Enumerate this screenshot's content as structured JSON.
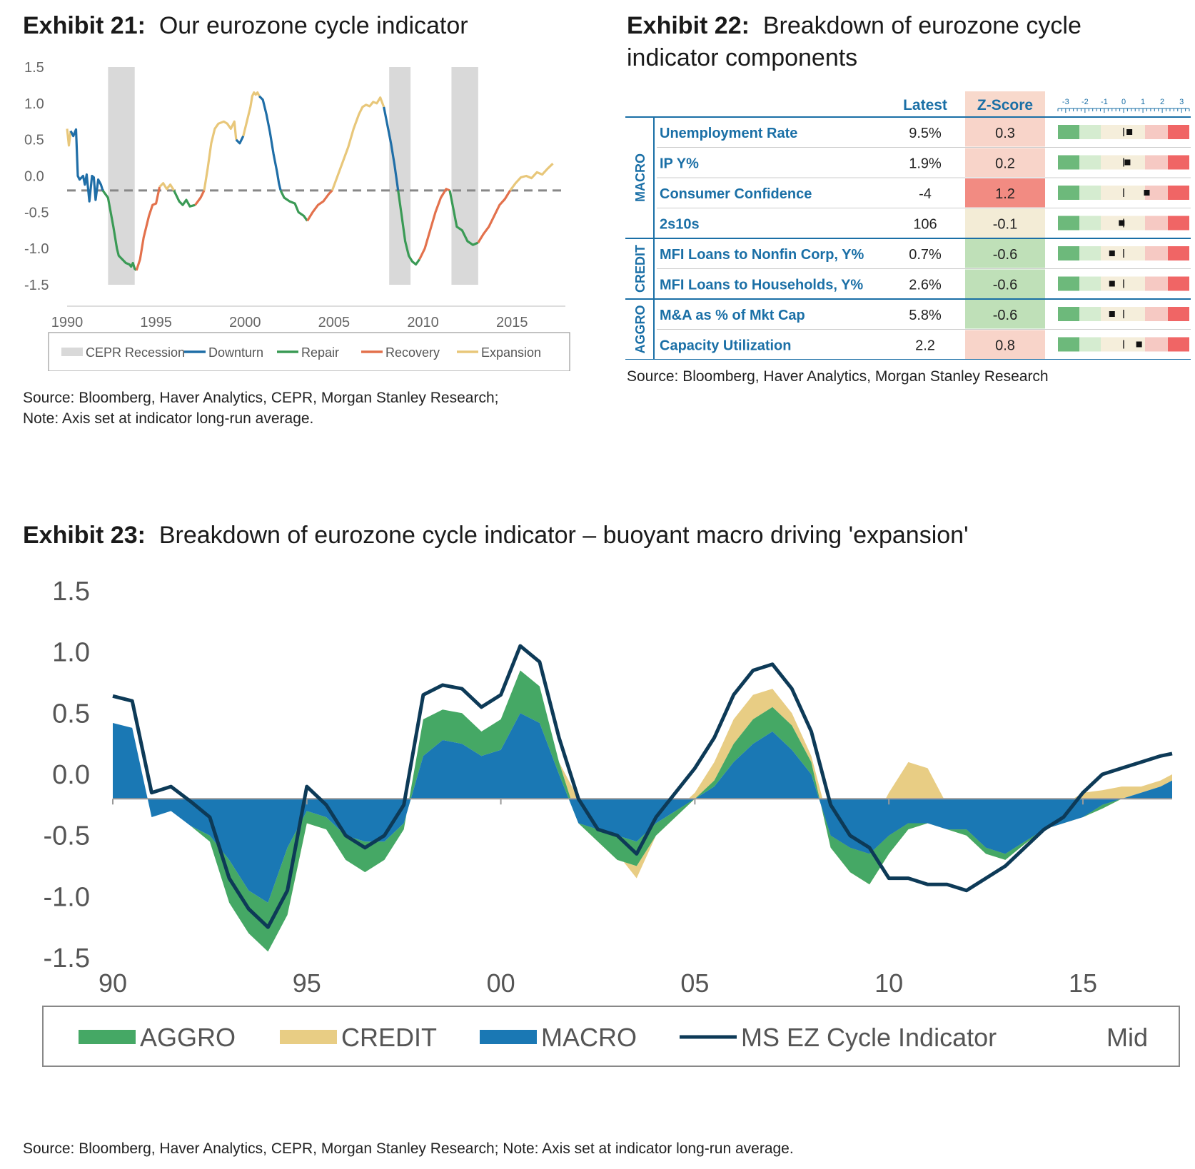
{
  "exhibit21": {
    "label": "Exhibit 21:",
    "title": "Our eurozone cycle indicator",
    "source_line1": "Source: Bloomberg, Haver Analytics, CEPR, Morgan Stanley Research;",
    "source_line2": "Note: Axis set at indicator long-run average."
  },
  "exhibit22": {
    "label": "Exhibit 22:",
    "title_line1": "Breakdown of eurozone cycle",
    "title_line2": "indicator components",
    "source": "Source: Bloomberg, Haver Analytics, Morgan Stanley Research",
    "col_latest": "Latest",
    "col_zscore": "Z-Score",
    "scale_ticks": [
      "-3",
      "-2",
      "-1",
      "0",
      "1",
      "2",
      "3"
    ],
    "groups": [
      {
        "name": "MACRO",
        "rows": 4
      },
      {
        "name": "CREDIT",
        "rows": 2
      },
      {
        "name": "AGGRO",
        "rows": 2
      }
    ],
    "rows": [
      {
        "name": "Unemployment Rate",
        "latest": "9.5%",
        "z": "0.3",
        "zval": 0.3
      },
      {
        "name": "IP Y%",
        "latest": "1.9%",
        "z": "0.2",
        "zval": 0.2
      },
      {
        "name": "Consumer Confidence",
        "latest": "-4",
        "z": "1.2",
        "zval": 1.2
      },
      {
        "name": "2s10s",
        "latest": "106",
        "z": "-0.1",
        "zval": -0.1
      },
      {
        "name": "MFI Loans to Nonfin Corp, Y%",
        "latest": "0.7%",
        "z": "-0.6",
        "zval": -0.6
      },
      {
        "name": "MFI Loans to Households, Y%",
        "latest": "2.6%",
        "z": "-0.6",
        "zval": -0.6
      },
      {
        "name": "M&A as % of Mkt Cap",
        "latest": "5.8%",
        "z": "-0.6",
        "zval": -0.6
      },
      {
        "name": "Capacity Utilization",
        "latest": "2.2",
        "z": "0.8",
        "zval": 0.8
      }
    ]
  },
  "exhibit23": {
    "label": "Exhibit 23:",
    "title": "Breakdown of eurozone cycle indicator – buoyant macro driving 'expansion'",
    "source": "Source: Bloomberg, Haver Analytics, CEPR, Morgan Stanley Research; Note: Axis set at indicator long-run average."
  },
  "chart_data": [
    {
      "id": "exhibit21",
      "type": "line",
      "title": "Our eurozone cycle indicator",
      "x_tick_labels": [
        "1990",
        "1995",
        "2000",
        "2005",
        "2010",
        "2015"
      ],
      "y_tick_labels": [
        "1.5",
        "1.0",
        "0.5",
        "0.0",
        "-0.5",
        "-1.0",
        "-1.5"
      ],
      "xlim": [
        1990,
        2018
      ],
      "ylim": [
        -1.5,
        1.5
      ],
      "reference_line": -0.2,
      "recessions": [
        [
          1992.3,
          1993.8
        ],
        [
          2008.1,
          2009.3
        ],
        [
          2011.6,
          2013.1
        ]
      ],
      "legend": [
        "CEPR Recession",
        "Downturn",
        "Repair",
        "Recovery",
        "Expansion"
      ],
      "phase_colors": {
        "Downturn": "#1f6ea7",
        "Repair": "#3a9a55",
        "Recovery": "#e3714c",
        "Expansion": "#e8c77a",
        "CEPR Recession": "#d9d9d9"
      },
      "series": [
        {
          "phase": "Expansion",
          "x": [
            1990.0,
            1990.1,
            1990.2
          ],
          "y": [
            0.65,
            0.42,
            0.62
          ]
        },
        {
          "phase": "Downturn",
          "x": [
            1990.2,
            1990.35,
            1990.5,
            1990.6,
            1990.7,
            1990.9,
            1991.0,
            1991.1,
            1991.25,
            1991.4,
            1991.5,
            1991.6,
            1991.75,
            1991.9,
            1992.0
          ],
          "y": [
            0.62,
            0.55,
            0.64,
            0.0,
            -0.05,
            0.0,
            -0.12,
            0.02,
            -0.35,
            0.0,
            -0.02,
            -0.33,
            -0.05,
            -0.12,
            -0.2
          ]
        },
        {
          "phase": "Repair",
          "x": [
            1992.0,
            1992.3,
            1992.6,
            1992.8,
            1992.9,
            1993.1,
            1993.3,
            1993.5,
            1993.6,
            1993.7,
            1993.8,
            1993.9
          ],
          "y": [
            -0.2,
            -0.3,
            -0.7,
            -1.0,
            -1.1,
            -1.15,
            -1.2,
            -1.22,
            -1.25,
            -1.2,
            -1.28,
            -1.3
          ]
        },
        {
          "phase": "Recovery",
          "x": [
            1993.9,
            1994.1,
            1994.3,
            1994.6,
            1994.8,
            1995.0,
            1995.2
          ],
          "y": [
            -1.3,
            -1.15,
            -0.85,
            -0.55,
            -0.4,
            -0.38,
            -0.15
          ]
        },
        {
          "phase": "Expansion",
          "x": [
            1995.2,
            1995.4,
            1995.6,
            1995.8,
            1996.0
          ],
          "y": [
            -0.15,
            -0.1,
            -0.18,
            -0.12,
            -0.2
          ]
        },
        {
          "phase": "Repair",
          "x": [
            1996.0,
            1996.3,
            1996.5,
            1996.7,
            1996.9,
            1997.2
          ],
          "y": [
            -0.2,
            -0.35,
            -0.4,
            -0.33,
            -0.42,
            -0.4
          ]
        },
        {
          "phase": "Recovery",
          "x": [
            1997.2,
            1997.5,
            1997.7
          ],
          "y": [
            -0.4,
            -0.3,
            -0.2
          ]
        },
        {
          "phase": "Expansion",
          "x": [
            1997.7,
            1997.9,
            1998.1,
            1998.3,
            1998.5,
            1998.8,
            1999.0,
            1999.2,
            1999.4,
            1999.5
          ],
          "y": [
            -0.2,
            0.1,
            0.45,
            0.65,
            0.72,
            0.75,
            0.72,
            0.65,
            0.75,
            0.5
          ]
        },
        {
          "phase": "Downturn",
          "x": [
            1999.5,
            1999.7,
            1999.9
          ],
          "y": [
            0.5,
            0.45,
            0.55
          ]
        },
        {
          "phase": "Expansion",
          "x": [
            1999.9,
            2000.1,
            2000.3,
            2000.4,
            2000.5,
            2000.6,
            2000.7,
            2000.8
          ],
          "y": [
            0.55,
            0.75,
            0.95,
            1.1,
            1.15,
            1.12,
            1.15,
            1.1
          ]
        },
        {
          "phase": "Downturn",
          "x": [
            2000.8,
            2001.0,
            2001.2,
            2001.4,
            2001.6,
            2001.8,
            2001.9,
            2002.0
          ],
          "y": [
            1.1,
            1.05,
            0.85,
            0.6,
            0.3,
            0.05,
            -0.1,
            -0.2
          ]
        },
        {
          "phase": "Repair",
          "x": [
            2002.0,
            2002.2,
            2002.5,
            2002.8,
            2003.0,
            2003.3,
            2003.5
          ],
          "y": [
            -0.2,
            -0.3,
            -0.35,
            -0.38,
            -0.5,
            -0.55,
            -0.62
          ]
        },
        {
          "phase": "Recovery",
          "x": [
            2003.5,
            2003.8,
            2004.1,
            2004.4,
            2004.7,
            2004.9
          ],
          "y": [
            -0.62,
            -0.5,
            -0.4,
            -0.35,
            -0.25,
            -0.2
          ]
        },
        {
          "phase": "Expansion",
          "x": [
            2004.9,
            2005.2,
            2005.5,
            2005.8,
            2006.1,
            2006.4,
            2006.6,
            2006.8,
            2007.0,
            2007.2,
            2007.4,
            2007.6,
            2007.8
          ],
          "y": [
            -0.2,
            0.0,
            0.2,
            0.4,
            0.65,
            0.85,
            0.95,
            0.98,
            0.96,
            1.02,
            1.0,
            1.08,
            0.95
          ]
        },
        {
          "phase": "Downturn",
          "x": [
            2007.8,
            2008.0,
            2008.2,
            2008.4,
            2008.6
          ],
          "y": [
            0.95,
            0.7,
            0.45,
            0.15,
            -0.2
          ]
        },
        {
          "phase": "Repair",
          "x": [
            2008.6,
            2008.8,
            2009.0,
            2009.2,
            2009.4,
            2009.6,
            2009.8
          ],
          "y": [
            -0.2,
            -0.55,
            -0.9,
            -1.1,
            -1.18,
            -1.22,
            -1.15
          ]
        },
        {
          "phase": "Recovery",
          "x": [
            2009.8,
            2010.1,
            2010.4,
            2010.7,
            2011.0,
            2011.3,
            2011.5
          ],
          "y": [
            -1.15,
            -1.0,
            -0.75,
            -0.5,
            -0.3,
            -0.18,
            -0.2
          ]
        },
        {
          "phase": "Repair",
          "x": [
            2011.5,
            2011.7,
            2011.9,
            2012.2,
            2012.5,
            2012.8,
            2013.1
          ],
          "y": [
            -0.2,
            -0.45,
            -0.7,
            -0.75,
            -0.9,
            -0.95,
            -0.92
          ]
        },
        {
          "phase": "Recovery",
          "x": [
            2013.1,
            2013.4,
            2013.7,
            2014.0,
            2014.3,
            2014.6,
            2014.9
          ],
          "y": [
            -0.92,
            -0.8,
            -0.7,
            -0.55,
            -0.4,
            -0.32,
            -0.2
          ]
        },
        {
          "phase": "Expansion",
          "x": [
            2014.9,
            2015.2,
            2015.5,
            2015.8,
            2016.1,
            2016.4,
            2016.7,
            2017.0,
            2017.3
          ],
          "y": [
            -0.2,
            -0.1,
            -0.02,
            0.0,
            -0.03,
            0.05,
            0.02,
            0.1,
            0.17
          ]
        }
      ]
    },
    {
      "id": "exhibit23",
      "type": "area",
      "title": "Breakdown of eurozone cycle indicator – buoyant macro driving 'expansion'",
      "x_tick_labels": [
        "90",
        "95",
        "00",
        "05",
        "10",
        "15"
      ],
      "y_tick_labels": [
        "1.5",
        "1.0",
        "0.5",
        "0.0",
        "-0.5",
        "-1.0",
        "-1.5"
      ],
      "xlim": [
        1990,
        2017.3
      ],
      "ylim": [
        -1.5,
        1.5
      ],
      "baseline": -0.2,
      "legend": [
        "AGGRO",
        "CREDIT",
        "MACRO",
        "MS EZ Cycle Indicator",
        "Mid"
      ],
      "colors": {
        "AGGRO": "#45a865",
        "CREDIT": "#e8cd84",
        "MACRO": "#1a78b4",
        "MS EZ Cycle Indicator": "#0d3a57"
      },
      "x": [
        1990.0,
        1990.5,
        1991.0,
        1991.5,
        1992.0,
        1992.5,
        1993.0,
        1993.5,
        1994.0,
        1994.5,
        1995.0,
        1995.5,
        1996.0,
        1996.5,
        1997.0,
        1997.5,
        1998.0,
        1998.5,
        1999.0,
        1999.5,
        2000.0,
        2000.5,
        2001.0,
        2001.5,
        2002.0,
        2002.5,
        2003.0,
        2003.5,
        2004.0,
        2004.5,
        2005.0,
        2005.5,
        2006.0,
        2006.5,
        2007.0,
        2007.5,
        2008.0,
        2008.5,
        2009.0,
        2009.5,
        2010.0,
        2010.5,
        2011.0,
        2011.5,
        2012.0,
        2012.5,
        2013.0,
        2013.5,
        2014.0,
        2014.5,
        2015.0,
        2015.5,
        2016.0,
        2016.5,
        2017.0,
        2017.3
      ],
      "series": [
        {
          "name": "MACRO",
          "values": [
            0.62,
            0.58,
            -0.15,
            -0.1,
            -0.22,
            -0.3,
            -0.5,
            -0.75,
            -0.85,
            -0.4,
            -0.1,
            -0.15,
            -0.3,
            -0.35,
            -0.35,
            -0.2,
            0.35,
            0.48,
            0.45,
            0.35,
            0.4,
            0.7,
            0.62,
            0.2,
            -0.2,
            -0.25,
            -0.3,
            -0.35,
            -0.2,
            -0.1,
            0.0,
            0.1,
            0.3,
            0.45,
            0.55,
            0.4,
            0.2,
            -0.3,
            -0.4,
            -0.45,
            -0.3,
            -0.2,
            -0.2,
            -0.25,
            -0.25,
            -0.4,
            -0.45,
            -0.35,
            -0.25,
            -0.2,
            -0.15,
            -0.05,
            0.0,
            0.05,
            0.1,
            0.15
          ]
        },
        {
          "name": "AGGRO",
          "values": [
            0.0,
            0.0,
            0.0,
            0.0,
            0.0,
            -0.05,
            -0.35,
            -0.35,
            -0.4,
            -0.55,
            -0.1,
            -0.1,
            -0.2,
            -0.25,
            -0.15,
            -0.05,
            0.3,
            0.25,
            0.25,
            0.2,
            0.25,
            0.35,
            0.3,
            0.1,
            0.0,
            -0.1,
            -0.2,
            -0.2,
            -0.1,
            -0.05,
            0.0,
            0.05,
            0.15,
            0.2,
            0.2,
            0.2,
            0.1,
            -0.1,
            -0.2,
            -0.25,
            -0.15,
            -0.05,
            0.0,
            0.0,
            -0.05,
            -0.05,
            -0.05,
            -0.02,
            0.0,
            0.0,
            0.0,
            -0.03,
            0.0,
            0.0,
            0.0,
            0.0
          ]
        },
        {
          "name": "CREDIT",
          "values": [
            0.0,
            0.0,
            0.0,
            0.0,
            0.0,
            0.0,
            0.0,
            0.0,
            0.0,
            0.0,
            0.05,
            0.0,
            0.0,
            0.0,
            0.0,
            0.0,
            0.0,
            0.0,
            0.0,
            0.0,
            0.0,
            0.0,
            0.0,
            0.0,
            0.2,
            0.1,
            0.05,
            -0.1,
            0.0,
            0.05,
            0.05,
            0.15,
            0.2,
            0.2,
            0.15,
            0.1,
            0.05,
            0.15,
            0.3,
            0.45,
            0.5,
            0.55,
            0.45,
            0.2,
            0.25,
            0.25,
            0.3,
            0.3,
            0.2,
            0.15,
            0.2,
            0.15,
            0.1,
            0.05,
            0.05,
            0.05
          ]
        }
      ],
      "indicator": [
        0.64,
        0.6,
        -0.15,
        -0.1,
        -0.22,
        -0.35,
        -0.85,
        -1.1,
        -1.25,
        -0.95,
        -0.1,
        -0.25,
        -0.5,
        -0.6,
        -0.5,
        -0.25,
        0.65,
        0.73,
        0.7,
        0.55,
        0.65,
        1.05,
        0.92,
        0.3,
        -0.2,
        -0.45,
        -0.5,
        -0.65,
        -0.35,
        -0.15,
        0.05,
        0.3,
        0.65,
        0.85,
        0.9,
        0.7,
        0.35,
        -0.25,
        -0.5,
        -0.6,
        -0.85,
        -0.85,
        -0.9,
        -0.9,
        -0.95,
        -0.85,
        -0.75,
        -0.6,
        -0.45,
        -0.35,
        -0.15,
        0.0,
        0.05,
        0.1,
        0.15,
        0.17
      ]
    }
  ]
}
